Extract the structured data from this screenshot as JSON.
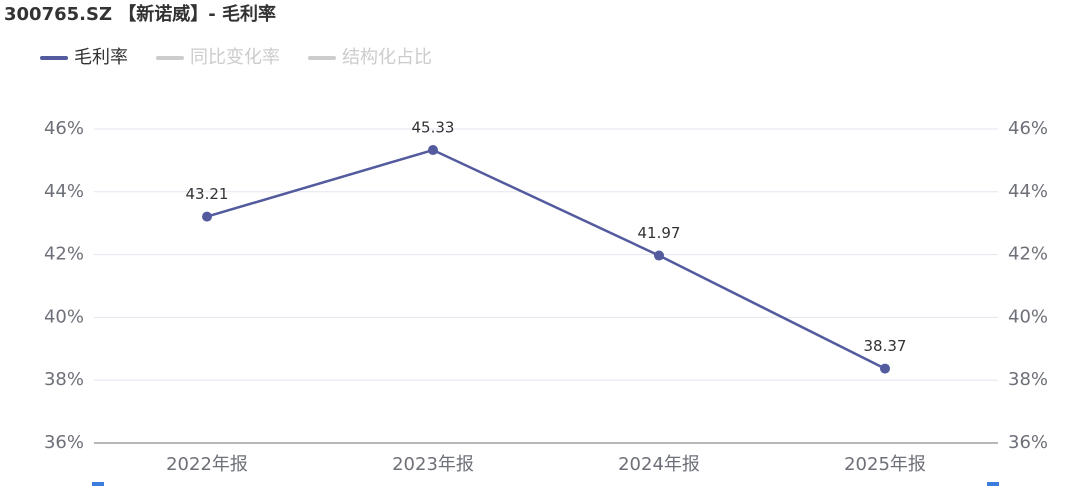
{
  "chart_data": {
    "type": "line",
    "title": "300765.SZ 【新诺威】- 毛利率",
    "categories": [
      "2022年报",
      "2023年报",
      "2024年报",
      "2025年报"
    ],
    "series": [
      {
        "name": "毛利率",
        "color": "#535b9e",
        "values": [
          43.21,
          45.33,
          41.97,
          38.37
        ]
      },
      {
        "name": "同比变化率",
        "color": "#cccccc",
        "hidden": true,
        "values": [
          null,
          null,
          null,
          null
        ]
      },
      {
        "name": "结构化占比",
        "color": "#cccccc",
        "hidden": true,
        "values": [
          null,
          null,
          null,
          null
        ]
      }
    ],
    "ylim": [
      36,
      46
    ],
    "yticks": [
      {
        "value": 36,
        "label": "36%"
      },
      {
        "value": 38,
        "label": "38%"
      },
      {
        "value": 40,
        "label": "40%"
      },
      {
        "value": 42,
        "label": "42%"
      },
      {
        "value": 44,
        "label": "44%"
      },
      {
        "value": 46,
        "label": "46%"
      }
    ],
    "y2lim": [
      36,
      46
    ],
    "y2ticks": [
      {
        "value": 36,
        "label": "36%"
      },
      {
        "value": 38,
        "label": "38%"
      },
      {
        "value": 40,
        "label": "40%"
      },
      {
        "value": 42,
        "label": "42%"
      },
      {
        "value": 44,
        "label": "44%"
      },
      {
        "value": 46,
        "label": "46%"
      }
    ],
    "grid": true
  }
}
